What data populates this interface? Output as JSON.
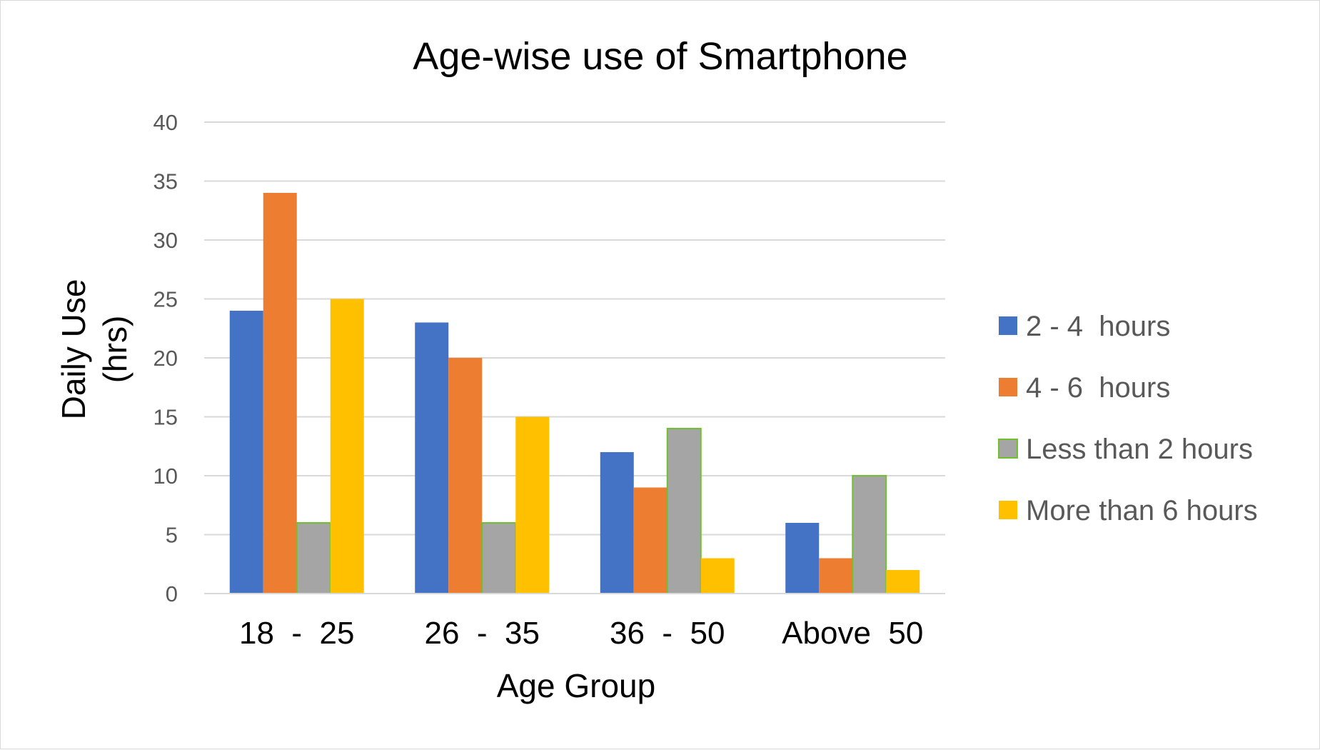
{
  "chart_data": {
    "type": "bar",
    "title": "Age-wise use of Smartphone",
    "xlabel": "Age Group",
    "ylabel_lines": [
      "Daily Use",
      "(hrs)"
    ],
    "categories": [
      "18  -  25",
      "26  -  35",
      "36  -  50",
      "Above  50"
    ],
    "series": [
      {
        "name": "2 - 4  hours",
        "color": "#4472C4",
        "values": [
          24,
          23,
          12,
          6
        ]
      },
      {
        "name": "4 - 6  hours",
        "color": "#ED7D31",
        "values": [
          34,
          20,
          9,
          3
        ]
      },
      {
        "name": "Less than 2 hours",
        "color": "#A5A5A5",
        "edge": "#70C030",
        "values": [
          6,
          6,
          14,
          10
        ]
      },
      {
        "name": "More than 6 hours",
        "color": "#FFC000",
        "values": [
          25,
          15,
          3,
          2
        ]
      }
    ],
    "ylim": [
      0,
      40
    ],
    "yticks": [
      0,
      5,
      10,
      15,
      20,
      25,
      30,
      35,
      40
    ],
    "grid": true,
    "legend": "right"
  }
}
